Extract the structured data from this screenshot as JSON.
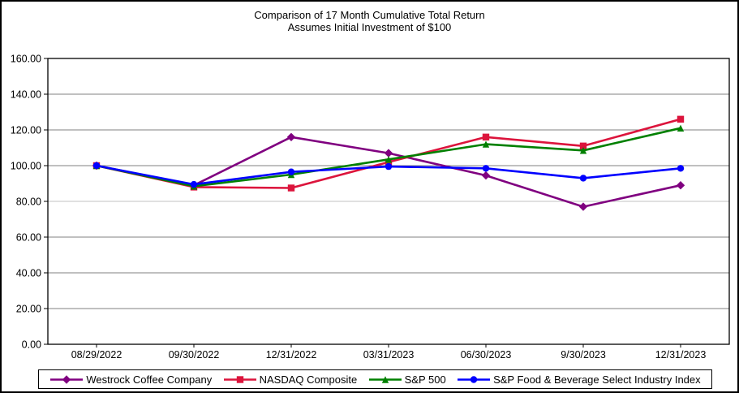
{
  "title": {
    "line1": "Comparison of 17 Month Cumulative Total Return",
    "line2": "Assumes Initial Investment of $100"
  },
  "chart_data": {
    "type": "line",
    "title": "Comparison of 17 Month Cumulative Total Return",
    "subtitle": "Assumes Initial Investment of $100",
    "categories": [
      "08/29/2022",
      "09/30/2022",
      "12/31/2022",
      "03/31/2023",
      "06/30/2023",
      "9/30/2023",
      "12/31/2023"
    ],
    "series": [
      {
        "name": "Westrock Coffee Company",
        "color": "#800080",
        "marker": "diamond",
        "values": [
          100.0,
          89.0,
          116.0,
          107.0,
          94.5,
          77.0,
          89.0
        ]
      },
      {
        "name": "NASDAQ Composite",
        "color": "#DC143C",
        "marker": "square",
        "values": [
          100.0,
          88.0,
          87.5,
          102.0,
          116.0,
          111.0,
          126.0
        ]
      },
      {
        "name": "S&P 500",
        "color": "#008000",
        "marker": "triangle",
        "values": [
          100.0,
          88.5,
          95.0,
          103.5,
          112.0,
          108.5,
          121.0
        ]
      },
      {
        "name": "S&P Food & Beverage Select Industry Index",
        "color": "#0000FF",
        "marker": "circle",
        "values": [
          100.0,
          89.5,
          96.5,
          99.5,
          98.5,
          93.0,
          98.5
        ]
      }
    ],
    "ylim": [
      0,
      160
    ],
    "y_tick_step": 20,
    "y_tick_labels": [
      "0.00",
      "20.00",
      "40.00",
      "60.00",
      "80.00",
      "100.00",
      "120.00",
      "140.00",
      "160.00"
    ],
    "grid": true,
    "legend_position": "bottom",
    "axis_color": "#000000",
    "grid_color": "#808080",
    "light_grid_value": 80,
    "light_grid_color": "#c0c0c0"
  }
}
